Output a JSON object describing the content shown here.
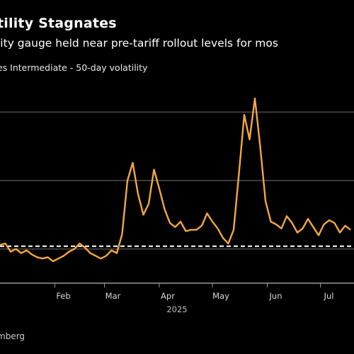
{
  "header": {
    "title": "tility Stagnates",
    "subtitle": "lity gauge held near pre-tariff rollout levels for mos",
    "series_label": "es Intermediate - 50-day volatility"
  },
  "footer": {
    "source": "mberg"
  },
  "colors": {
    "background": "#000000",
    "line": "#f5a742",
    "gridline": "#3c3c3c",
    "reference_line": "#ffffff"
  },
  "chart_data": {
    "type": "line",
    "title": "tility Stagnates",
    "subtitle": "lity gauge held near pre-tariff rollout levels for mos",
    "series": [
      {
        "name": "es Intermediate - 50-day volatility",
        "x": [
          0,
          3,
          6,
          9,
          12,
          15,
          18,
          21,
          24,
          27,
          30,
          33,
          36,
          39,
          42,
          45,
          48,
          51,
          54,
          57,
          60,
          63,
          66,
          69,
          72,
          75,
          78,
          81,
          84,
          87,
          90,
          93,
          96,
          99,
          102,
          105,
          108,
          111,
          114,
          117,
          120,
          123,
          126,
          129,
          132,
          135,
          138,
          141,
          144,
          147,
          150,
          153,
          156,
          159,
          162,
          165,
          168,
          171,
          174,
          177,
          180,
          183,
          186,
          189,
          192,
          195,
          198
        ],
        "values": [
          5.3,
          5.4,
          4.8,
          5.0,
          4.7,
          4.9,
          4.6,
          4.4,
          4.3,
          4.4,
          4.1,
          4.3,
          4.5,
          4.8,
          5.0,
          5.4,
          5.1,
          4.7,
          4.5,
          4.3,
          4.5,
          4.9,
          4.7,
          6.1,
          10.0,
          11.3,
          9.0,
          7.5,
          8.3,
          10.8,
          9.4,
          7.9,
          6.9,
          6.6,
          7.0,
          6.3,
          6.4,
          6.4,
          6.7,
          7.6,
          7.0,
          6.5,
          5.8,
          5.4,
          6.4,
          10.5,
          14.8,
          13.0,
          16.0,
          12.5,
          8.5,
          7.0,
          6.8,
          6.5,
          7.4,
          6.9,
          6.2,
          6.5,
          7.2,
          6.6,
          6.0,
          6.8,
          7.1,
          6.9,
          6.2,
          6.7,
          6.4
        ]
      }
    ],
    "x_ticks": [
      "Feb",
      "Mar",
      "Apr",
      "May",
      "Jun",
      "Jul"
    ],
    "x_tick_days": [
      31,
      59,
      90,
      120,
      151,
      181
    ],
    "year_label": "2025",
    "xlim": [
      0,
      200
    ],
    "ylim": [
      2.5,
      17.5
    ],
    "gridlines": [
      5,
      10,
      15
    ],
    "reference_value": 5.2,
    "grid": true,
    "legend": "none"
  }
}
